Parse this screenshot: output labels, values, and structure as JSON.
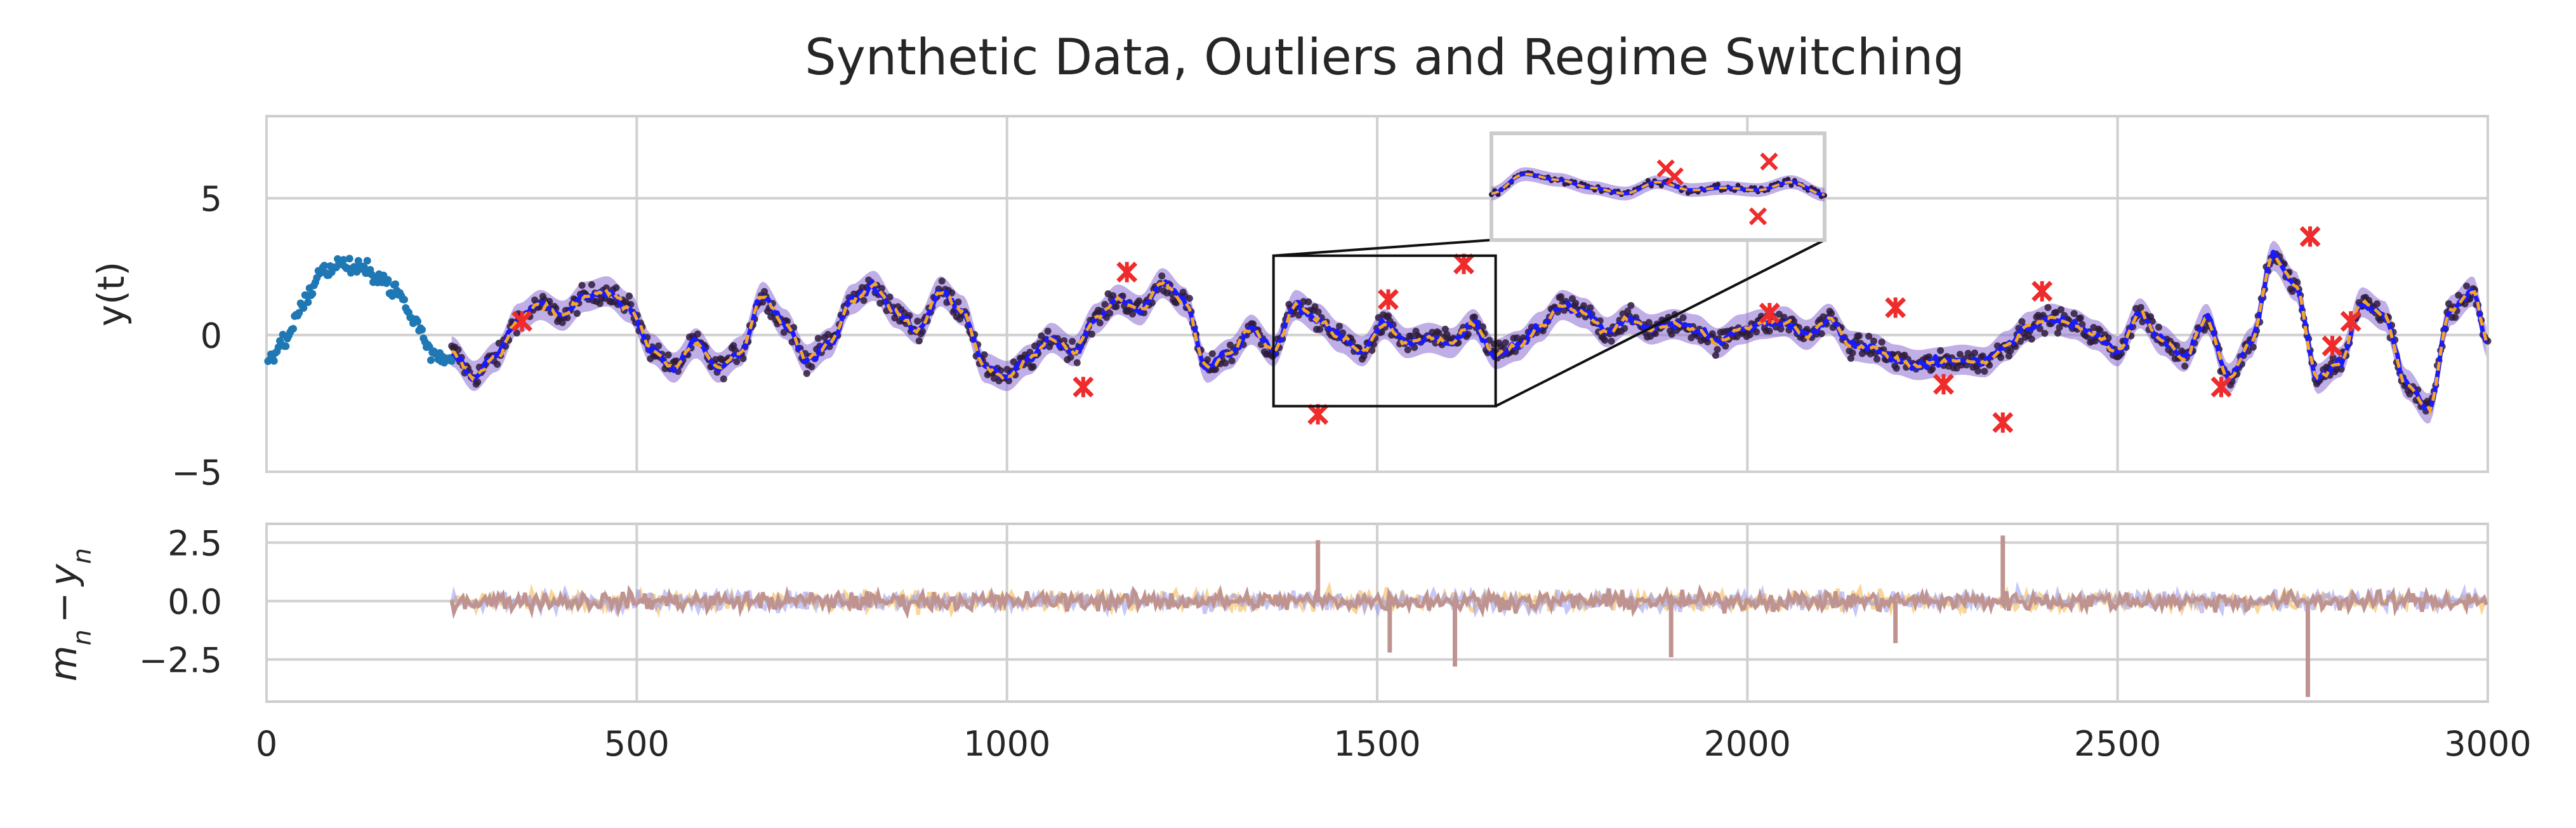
{
  "chart_data": [
    {
      "type": "scatter+line",
      "title": "Synthetic Data, Outliers and Regime Switching",
      "xlabel": "",
      "ylabel": "y(t)",
      "xlim": [
        0,
        3000
      ],
      "ylim": [
        -5,
        8
      ],
      "xticks": [
        0,
        500,
        1000,
        1500,
        2000,
        2500,
        3000
      ],
      "yticks": [
        -5,
        0,
        5
      ],
      "grid": true,
      "colors": {
        "warmup": "#1f77b4",
        "observations": "#2e1c3d",
        "band": "#8c6bd1",
        "mean": "#1a1aff",
        "dashed_mean": "#f5a623",
        "outliers": "#ef2b2b"
      },
      "warmup_curve": {
        "x": [
          0,
          25,
          50,
          75,
          100,
          125,
          150,
          175,
          200,
          225,
          250
        ],
        "y": [
          -1.0,
          -0.2,
          1.2,
          2.3,
          2.6,
          2.4,
          2.2,
          1.6,
          0.5,
          -0.7,
          -0.9
        ]
      },
      "signal": {
        "x": [
          250,
          280,
          310,
          340,
          370,
          400,
          430,
          460,
          490,
          520,
          550,
          580,
          610,
          640,
          670,
          700,
          730,
          760,
          790,
          820,
          850,
          880,
          910,
          940,
          970,
          1000,
          1030,
          1060,
          1090,
          1120,
          1150,
          1180,
          1210,
          1240,
          1270,
          1300,
          1330,
          1360,
          1390,
          1420,
          1450,
          1480,
          1510,
          1540,
          1570,
          1600,
          1630,
          1660,
          1690,
          1720,
          1750,
          1780,
          1810,
          1840,
          1870,
          1900,
          1930,
          1960,
          1990,
          2020,
          2050,
          2080,
          2110,
          2140,
          2170,
          2200,
          2230,
          2260,
          2290,
          2320,
          2350,
          2380,
          2410,
          2440,
          2470,
          2500,
          2530,
          2560,
          2590,
          2620,
          2650,
          2680,
          2710,
          2740,
          2770,
          2800,
          2830,
          2860,
          2890,
          2920,
          2950,
          2980,
          3000
        ],
        "y": [
          -0.6,
          -1.5,
          -0.8,
          0.6,
          1.1,
          0.7,
          1.4,
          1.6,
          1.0,
          -0.5,
          -1.2,
          -0.3,
          -1.2,
          -0.6,
          1.4,
          0.4,
          -0.9,
          -0.3,
          1.3,
          1.8,
          0.8,
          0.2,
          1.6,
          0.9,
          -1.2,
          -1.5,
          -0.9,
          -0.1,
          -0.6,
          0.6,
          1.3,
          0.9,
          1.9,
          1.2,
          -1.2,
          -0.7,
          0.2,
          -0.6,
          1.1,
          0.6,
          -0.1,
          -0.6,
          0.4,
          -0.3,
          -0.1,
          -0.3,
          0.4,
          -0.7,
          -0.4,
          0.3,
          1.1,
          0.8,
          0.1,
          0.6,
          0.2,
          0.4,
          0.2,
          -0.3,
          0.2,
          0.4,
          0.5,
          0.0,
          0.6,
          -0.4,
          -0.5,
          -0.9,
          -1.1,
          -1.0,
          -0.9,
          -1.0,
          -0.4,
          0.3,
          0.6,
          0.4,
          0.0,
          -0.6,
          0.8,
          -0.2,
          -0.8,
          0.6,
          -1.6,
          -0.3,
          2.9,
          1.8,
          -1.6,
          -1.0,
          1.2,
          0.7,
          -1.8,
          -2.7,
          0.9,
          1.6,
          -0.3
        ]
      },
      "outliers": {
        "x": [
          345,
          1103,
          1162,
          1420,
          1515,
          1617,
          1890,
          2030,
          2200,
          2265,
          2345,
          2398,
          2640,
          2760,
          2790,
          2815
        ],
        "y": [
          0.5,
          -1.9,
          2.3,
          -2.9,
          1.3,
          2.6,
          6.1,
          0.8,
          1.0,
          -1.8,
          -3.2,
          1.6,
          -1.9,
          3.6,
          -0.4,
          0.5
        ]
      },
      "zoom_box": {
        "x": [
          1360,
          1660
        ],
        "y": [
          -2.6,
          2.9
        ]
      }
    },
    {
      "type": "line",
      "xlabel": "",
      "ylabel_plain": "m_n - y_n",
      "xlim": [
        0,
        3000
      ],
      "ylim": [
        -4.3,
        3.3
      ],
      "xticks": [
        0,
        500,
        1000,
        1500,
        2000,
        2500,
        3000
      ],
      "xticklabels": [
        "0",
        "500",
        "1000",
        "1500",
        "2000",
        "2500",
        "3000"
      ],
      "yticks": [
        -2.5,
        0.0,
        2.5
      ],
      "yticklabels": [
        "−2.5",
        "0.0",
        "2.5"
      ],
      "grid": true,
      "colors": {
        "residual": "#bf9490",
        "residual_alt": "#8d8df0",
        "residual_alt2": "#f7c46b"
      },
      "spikes": {
        "x": [
          1420,
          1517,
          1605,
          1897,
          2200,
          2345,
          2757
        ],
        "y": [
          2.6,
          -2.2,
          -2.8,
          -2.4,
          -1.8,
          2.8,
          -4.1
        ]
      }
    }
  ]
}
